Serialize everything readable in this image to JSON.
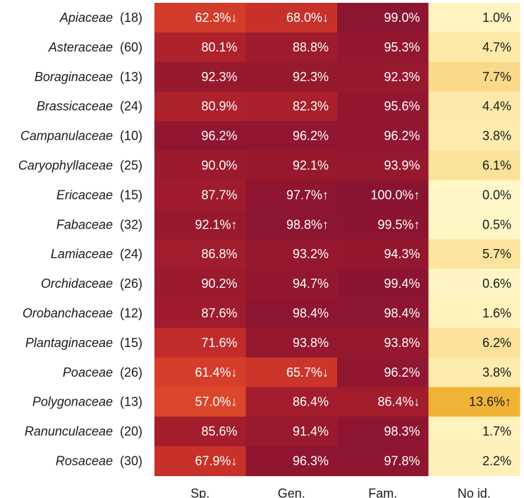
{
  "chart_data": {
    "type": "heatmap",
    "columns": [
      "Sp.",
      "Gen.",
      "Fam.",
      "No id."
    ],
    "rows": [
      {
        "family": "Apiaceae",
        "n": "(18)",
        "cells": [
          "62.3%↓",
          "68.0%↓",
          "99.0%",
          "1.0%"
        ],
        "values": [
          62.3,
          68.0,
          99.0,
          1.0
        ]
      },
      {
        "family": "Asteraceae",
        "n": "(60)",
        "cells": [
          "80.1%",
          "88.8%",
          "95.3%",
          "4.7%"
        ],
        "values": [
          80.1,
          88.8,
          95.3,
          4.7
        ]
      },
      {
        "family": "Boraginaceae",
        "n": "(13)",
        "cells": [
          "92.3%",
          "92.3%",
          "92.3%",
          "7.7%"
        ],
        "values": [
          92.3,
          92.3,
          92.3,
          7.7
        ]
      },
      {
        "family": "Brassicaceae",
        "n": "(24)",
        "cells": [
          "80.9%",
          "82.3%",
          "95.6%",
          "4.4%"
        ],
        "values": [
          80.9,
          82.3,
          95.6,
          4.4
        ]
      },
      {
        "family": "Campanulaceae",
        "n": "(10)",
        "cells": [
          "96.2%",
          "96.2%",
          "96.2%",
          "3.8%"
        ],
        "values": [
          96.2,
          96.2,
          96.2,
          3.8
        ]
      },
      {
        "family": "Caryophyllaceae",
        "n": "(25)",
        "cells": [
          "90.0%",
          "92.1%",
          "93.9%",
          "6.1%"
        ],
        "values": [
          90.0,
          92.1,
          93.9,
          6.1
        ]
      },
      {
        "family": "Ericaceae",
        "n": "(15)",
        "cells": [
          "87.7%",
          "97.7%↑",
          "100.0%↑",
          "0.0%"
        ],
        "values": [
          87.7,
          97.7,
          100.0,
          0.0
        ]
      },
      {
        "family": "Fabaceae",
        "n": "(32)",
        "cells": [
          "92.1%↑",
          "98.8%↑",
          "99.5%↑",
          "0.5%"
        ],
        "values": [
          92.1,
          98.8,
          99.5,
          0.5
        ]
      },
      {
        "family": "Lamiaceae",
        "n": "(24)",
        "cells": [
          "86.8%",
          "93.2%",
          "94.3%",
          "5.7%"
        ],
        "values": [
          86.8,
          93.2,
          94.3,
          5.7
        ]
      },
      {
        "family": "Orchidaceae",
        "n": "(26)",
        "cells": [
          "90.2%",
          "94.7%",
          "99.4%",
          "0.6%"
        ],
        "values": [
          90.2,
          94.7,
          99.4,
          0.6
        ]
      },
      {
        "family": "Orobanchaceae",
        "n": "(12)",
        "cells": [
          "87.6%",
          "98.4%",
          "98.4%",
          "1.6%"
        ],
        "values": [
          87.6,
          98.4,
          98.4,
          1.6
        ]
      },
      {
        "family": "Plantaginaceae",
        "n": "(15)",
        "cells": [
          "71.6%",
          "93.8%",
          "93.8%",
          "6.2%"
        ],
        "values": [
          71.6,
          93.8,
          93.8,
          6.2
        ]
      },
      {
        "family": "Poaceae",
        "n": "(26)",
        "cells": [
          "61.4%↓",
          "65.7%↓",
          "96.2%",
          "3.8%"
        ],
        "values": [
          61.4,
          65.7,
          96.2,
          3.8
        ]
      },
      {
        "family": "Polygonaceae",
        "n": "(13)",
        "cells": [
          "57.0%↓",
          "86.4%",
          "86.4%↓",
          "13.6%↑"
        ],
        "values": [
          57.0,
          86.4,
          86.4,
          13.6
        ]
      },
      {
        "family": "Ranunculaceae",
        "n": "(20)",
        "cells": [
          "85.6%",
          "91.4%",
          "98.3%",
          "1.7%"
        ],
        "values": [
          85.6,
          91.4,
          98.3,
          1.7
        ]
      },
      {
        "family": "Rosaceae",
        "n": "(30)",
        "cells": [
          "67.9%↓",
          "96.3%",
          "97.8%",
          "2.2%"
        ],
        "values": [
          67.9,
          96.3,
          97.8,
          2.2
        ]
      }
    ],
    "colors": {
      "high_scale": [
        "#e04a2a",
        "#c42d2a",
        "#a41d2c",
        "#8a1430"
      ],
      "low_scale": [
        "#fff7c8",
        "#fde9a8",
        "#f8d27a",
        "#f0b030"
      ],
      "text_on_dark": "#ffffff",
      "text_on_light": "#1a1a1a"
    }
  }
}
